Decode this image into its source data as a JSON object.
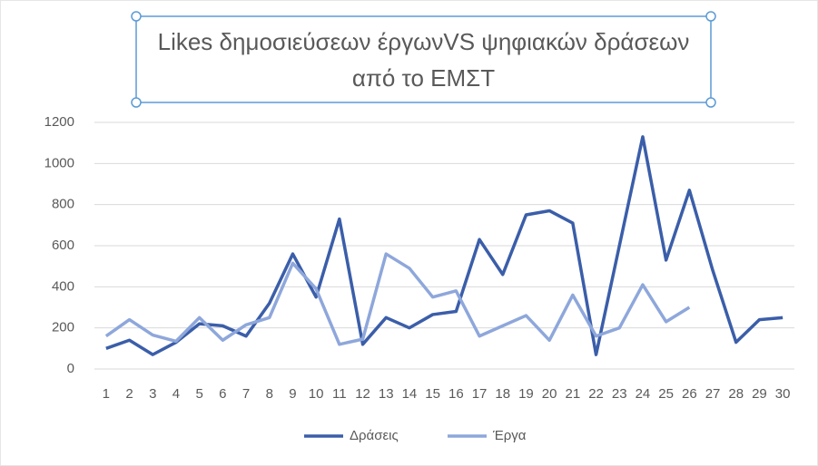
{
  "chart_data": {
    "type": "line",
    "title": "Likes δημοσιεύσεων έργωνVS ψηφιακών δράσεων από το ΕΜΣΤ",
    "categories": [
      "1",
      "2",
      "3",
      "4",
      "5",
      "6",
      "7",
      "8",
      "9",
      "10",
      "11",
      "12",
      "13",
      "14",
      "15",
      "16",
      "17",
      "18",
      "19",
      "20",
      "21",
      "22",
      "23",
      "24",
      "25",
      "26",
      "27",
      "28",
      "29",
      "30"
    ],
    "series": [
      {
        "name": "Δράσεις",
        "color": "#3b5ea9",
        "values": [
          100,
          140,
          70,
          130,
          220,
          210,
          160,
          320,
          560,
          350,
          730,
          120,
          250,
          200,
          265,
          280,
          630,
          460,
          750,
          770,
          710,
          70,
          600,
          1130,
          530,
          870,
          480,
          130,
          240,
          250
        ]
      },
      {
        "name": "Έργα",
        "color": "#8ea7db",
        "values": [
          160,
          240,
          165,
          135,
          250,
          140,
          215,
          250,
          515,
          390,
          120,
          145,
          560,
          490,
          350,
          380,
          160,
          210,
          260,
          140,
          360,
          160,
          200,
          410,
          230,
          300,
          null,
          null,
          null,
          null
        ]
      }
    ],
    "ylim": [
      0,
      1200
    ],
    "yticks": [
      0,
      200,
      400,
      600,
      800,
      1000,
      1200
    ],
    "grid": true,
    "legend": "bottom"
  }
}
